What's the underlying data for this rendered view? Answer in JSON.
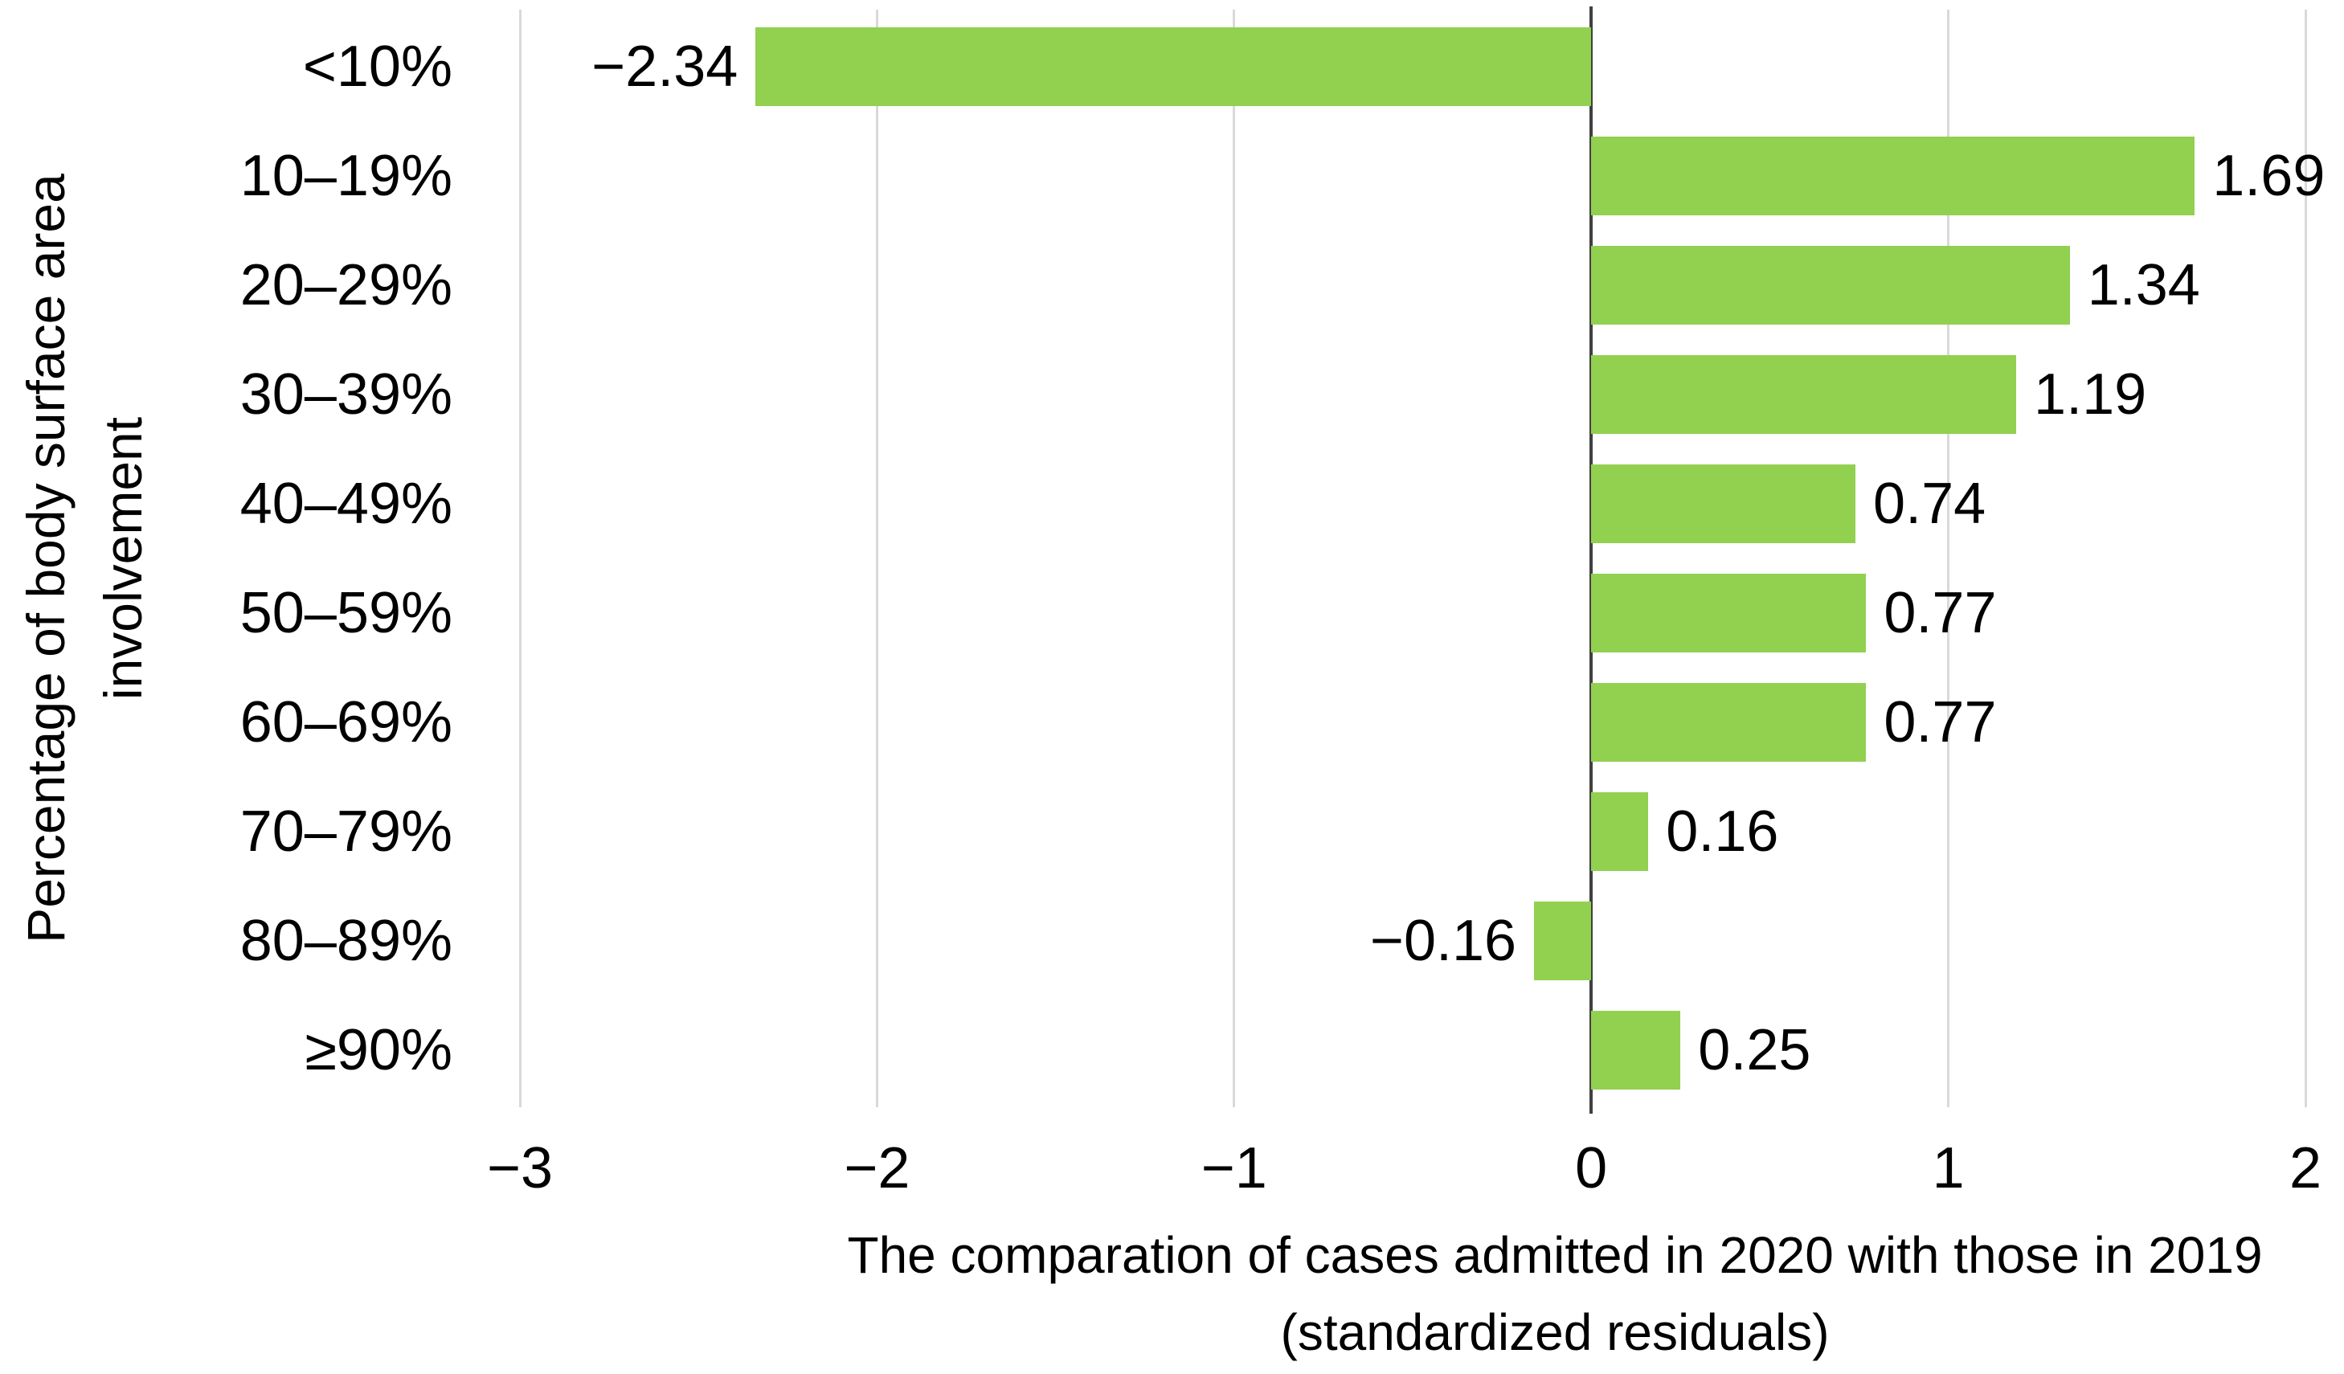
{
  "chart_data": {
    "type": "bar",
    "orientation": "horizontal",
    "title": "",
    "categories": [
      "<10%",
      "10–19%",
      "20–29%",
      "30–39%",
      "40–49%",
      "50–59%",
      "60–69%",
      "70–79%",
      "80–89%",
      "≥90%"
    ],
    "values": [
      -2.34,
      1.69,
      1.34,
      1.19,
      0.74,
      0.77,
      0.77,
      0.16,
      -0.16,
      0.25
    ],
    "value_labels": [
      "−2.34",
      "1.69",
      "1.34",
      "1.19",
      "0.74",
      "0.77",
      "0.77",
      "0.16",
      "−0.16",
      "0.25"
    ],
    "xlabel_line1": "The comparation of cases admitted in 2020 with those in 2019",
    "xlabel_line2": "(standardized residuals)",
    "ylabel_line1": "Percentage of body surface area",
    "ylabel_line2": "involvement",
    "xlim": [
      -3,
      2
    ],
    "x_ticks": [
      -3,
      -2,
      -1,
      0,
      1,
      2
    ],
    "x_tick_labels": [
      "−3",
      "−2",
      "−1",
      "0",
      "1",
      "2"
    ],
    "grid": true,
    "legend": "none",
    "bar_color": "#92D050",
    "gridline_color": "#D9D9D9",
    "axis_line_color": "#404040",
    "text_color": "#000000",
    "background": "#FFFFFF"
  }
}
